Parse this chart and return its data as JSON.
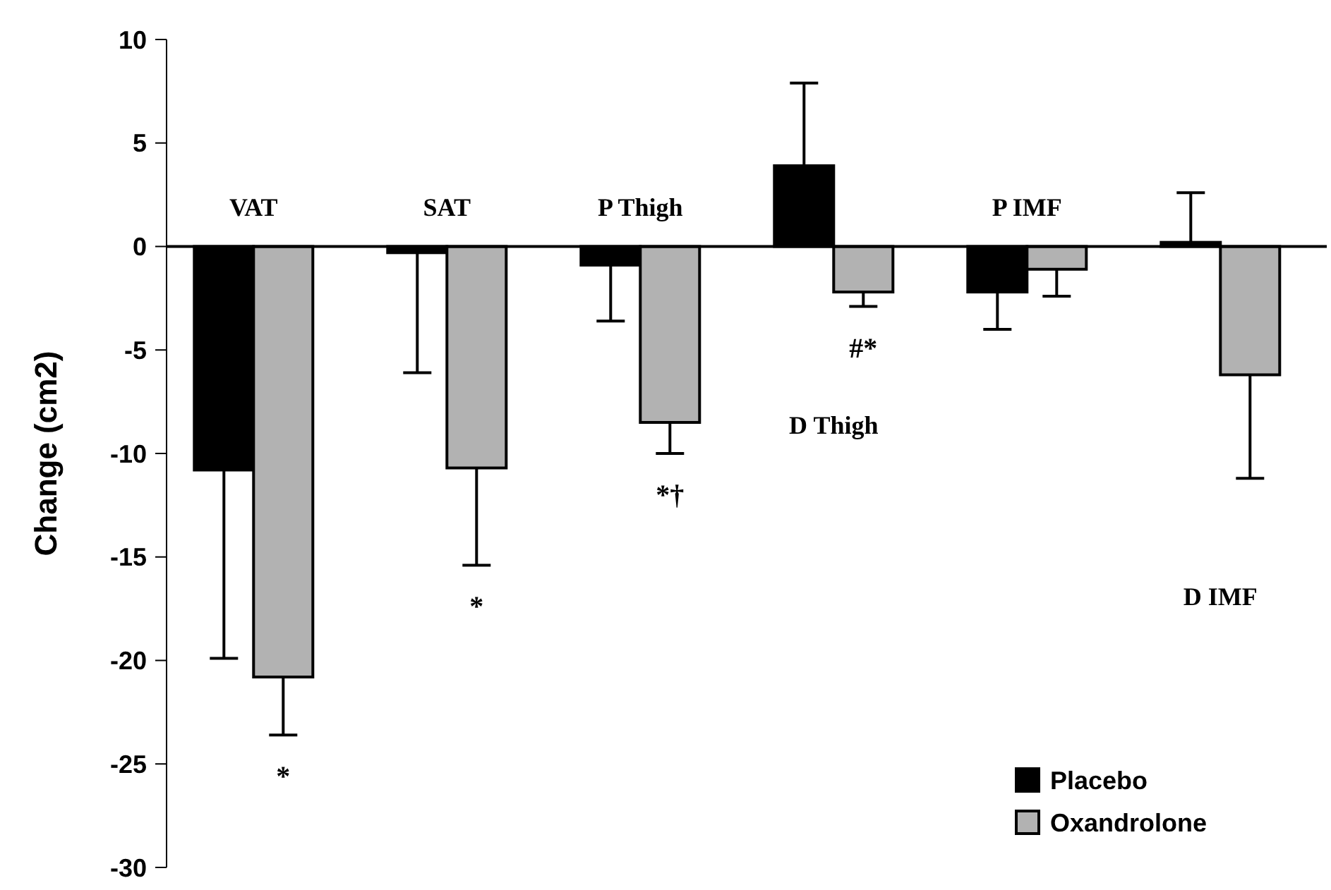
{
  "chart_data": {
    "type": "bar",
    "ylabel": "Change (cm2)",
    "categories": [
      "VAT",
      "SAT",
      "P Thigh",
      "D Thigh",
      "P IMF",
      "D IMF"
    ],
    "series": [
      {
        "name": "Placebo",
        "color": "#000000",
        "values": [
          -10.8,
          -0.3,
          -0.9,
          3.9,
          -2.2,
          0.2
        ],
        "errors": [
          [
            -19.9,
            -10.8
          ],
          [
            -6.1,
            -0.3
          ],
          [
            -3.6,
            -0.9
          ],
          [
            3.9,
            7.9
          ],
          [
            -4.0,
            -2.2
          ],
          [
            0.2,
            2.6
          ]
        ]
      },
      {
        "name": "Oxandrolone",
        "color": "#b2b2b2",
        "values": [
          -20.8,
          -10.7,
          -8.5,
          -2.2,
          -1.1,
          -6.2
        ],
        "errors": [
          [
            -23.6,
            -20.8
          ],
          [
            -15.4,
            -10.7
          ],
          [
            -10.0,
            -8.5
          ],
          [
            -2.9,
            -2.2
          ],
          [
            -2.4,
            -1.1
          ],
          [
            -11.2,
            -6.2
          ]
        ]
      }
    ],
    "ylim": [
      -30,
      10
    ],
    "yticks": [
      -30,
      -25,
      -20,
      -15,
      -10,
      -5,
      0,
      5,
      10
    ],
    "legend": "bottom right",
    "annotations": [
      "*",
      "*",
      "*†",
      "#*"
    ]
  }
}
